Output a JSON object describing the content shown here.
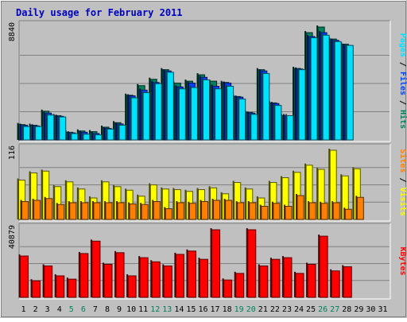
{
  "chart_data": [
    {
      "panel": "hits",
      "type": "bar",
      "title": "Daily usage for February 2011",
      "scale_label": "8840",
      "legend": [
        "Pages",
        "Files",
        "Hits"
      ],
      "x": [
        "1",
        "2",
        "3",
        "4",
        "5",
        "6",
        "7",
        "8",
        "9",
        "10",
        "11",
        "12",
        "13",
        "14",
        "15",
        "16",
        "17",
        "18",
        "19",
        "20",
        "21",
        "22",
        "23",
        "24",
        "25",
        "26",
        "27",
        "28",
        "29",
        "30",
        "31"
      ],
      "weekend_days": [
        5,
        6,
        12,
        13,
        19,
        20,
        26,
        27
      ],
      "ylim": [
        0,
        8840
      ],
      "series": [
        {
          "name": "Hits",
          "values": [
            1200,
            1150,
            2250,
            1900,
            600,
            700,
            650,
            1000,
            1350,
            3500,
            4250,
            4750,
            5500,
            4450,
            4600,
            5100,
            4600,
            4500,
            3400,
            2150,
            5500,
            2900,
            1900,
            5600,
            8400,
            8900,
            7900,
            7500,
            0,
            0,
            0
          ]
        },
        {
          "name": "Files",
          "values": [
            1150,
            1100,
            2100,
            1850,
            550,
            600,
            500,
            900,
            1250,
            3450,
            3900,
            4500,
            5400,
            4150,
            4450,
            4900,
            4200,
            4450,
            3350,
            2100,
            5400,
            2850,
            1900,
            5550,
            8100,
            8400,
            7800,
            7400,
            0,
            0,
            0
          ]
        },
        {
          "name": "Pages",
          "values": [
            1050,
            1050,
            1950,
            1800,
            500,
            450,
            400,
            850,
            1150,
            3300,
            3700,
            4400,
            5300,
            4000,
            4100,
            4700,
            4000,
            4200,
            3200,
            2000,
            5200,
            2700,
            1900,
            5500,
            8000,
            8200,
            7700,
            7400,
            0,
            0,
            0
          ]
        }
      ]
    },
    {
      "panel": "visits",
      "type": "bar",
      "scale_label": "116",
      "legend": [
        "Sites",
        "Visits"
      ],
      "ylim": [
        0,
        116
      ],
      "series": [
        {
          "name": "Visits",
          "values": [
            66,
            78,
            81,
            55,
            63,
            51,
            36,
            63,
            55,
            49,
            39,
            58,
            51,
            50,
            47,
            50,
            53,
            43,
            62,
            51,
            36,
            62,
            70,
            79,
            91,
            84,
            116,
            73,
            85,
            0,
            0
          ]
        },
        {
          "name": "Sites",
          "values": [
            30,
            32,
            35,
            25,
            28,
            28,
            28,
            28,
            28,
            26,
            25,
            30,
            18,
            28,
            27,
            30,
            32,
            32,
            28,
            28,
            22,
            27,
            22,
            40,
            28,
            27,
            28,
            17,
            37,
            0,
            0
          ]
        }
      ]
    },
    {
      "panel": "kbytes",
      "type": "bar",
      "scale_label": "40879",
      "legend": [
        "KBytes"
      ],
      "ylim": [
        0,
        40879
      ],
      "series": [
        {
          "name": "KBytes",
          "values": [
            25000,
            10000,
            19000,
            13000,
            11000,
            26500,
            34000,
            20000,
            27000,
            13000,
            24000,
            21500,
            19000,
            26000,
            28000,
            23000,
            40879,
            10500,
            14500,
            40879,
            19000,
            23000,
            24000,
            14500,
            20000,
            37000,
            16000,
            18500,
            0,
            0,
            0
          ]
        }
      ]
    }
  ],
  "colors": {
    "title": "#0000c0",
    "hits": "#00805c",
    "files": "#0040ff",
    "pages": "#00e0ff",
    "visits": "#ffff00",
    "sites": "#ff8000",
    "kbytes": "#ff0000",
    "weekday_label": "#000000",
    "weekend_label": "#00805c"
  }
}
